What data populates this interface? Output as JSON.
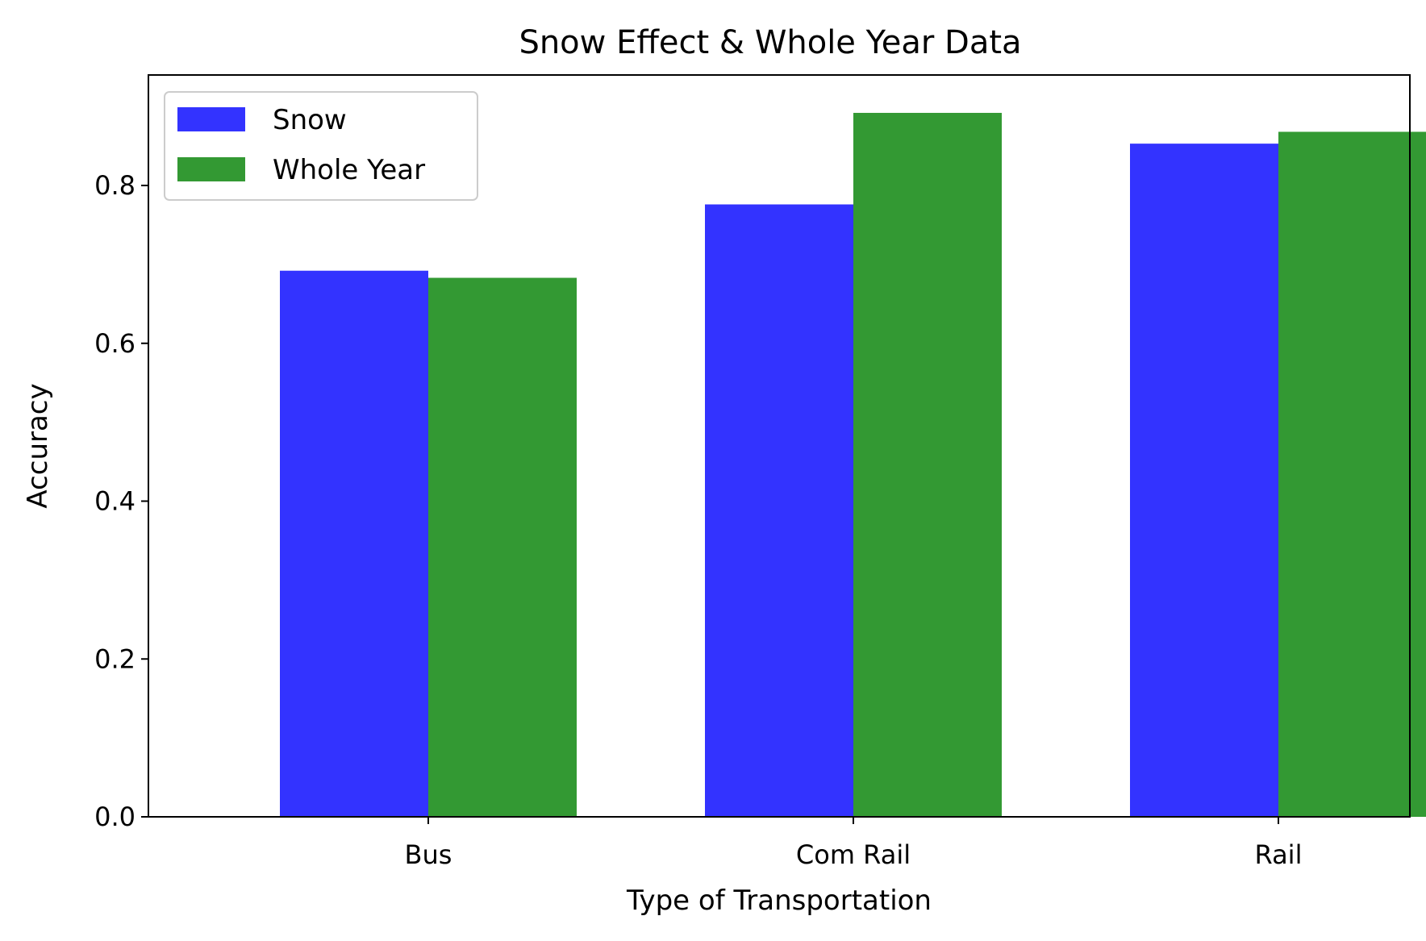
{
  "chart_data": {
    "type": "bar",
    "title": "Snow Effect  &  Whole Year Data",
    "xlabel": "Type of Transportation",
    "ylabel": "Accuracy",
    "categories": [
      "Bus",
      "Com Rail",
      "Rail"
    ],
    "series": [
      {
        "name": "Snow",
        "color": "#3333ff",
        "values": [
          0.692,
          0.776,
          0.853
        ]
      },
      {
        "name": "Whole Year",
        "color": "#339933",
        "values": [
          0.683,
          0.892,
          0.868
        ]
      }
    ],
    "ylim": [
      0,
      0.94
    ],
    "yticks": [
      0.0,
      0.2,
      0.4,
      0.6,
      0.8
    ],
    "ytick_labels": [
      "0.0",
      "0.2",
      "0.4",
      "0.6",
      "0.8"
    ],
    "grid": false,
    "legend": {
      "placement": "top-left",
      "entries": [
        "Snow",
        "Whole Year"
      ]
    }
  }
}
